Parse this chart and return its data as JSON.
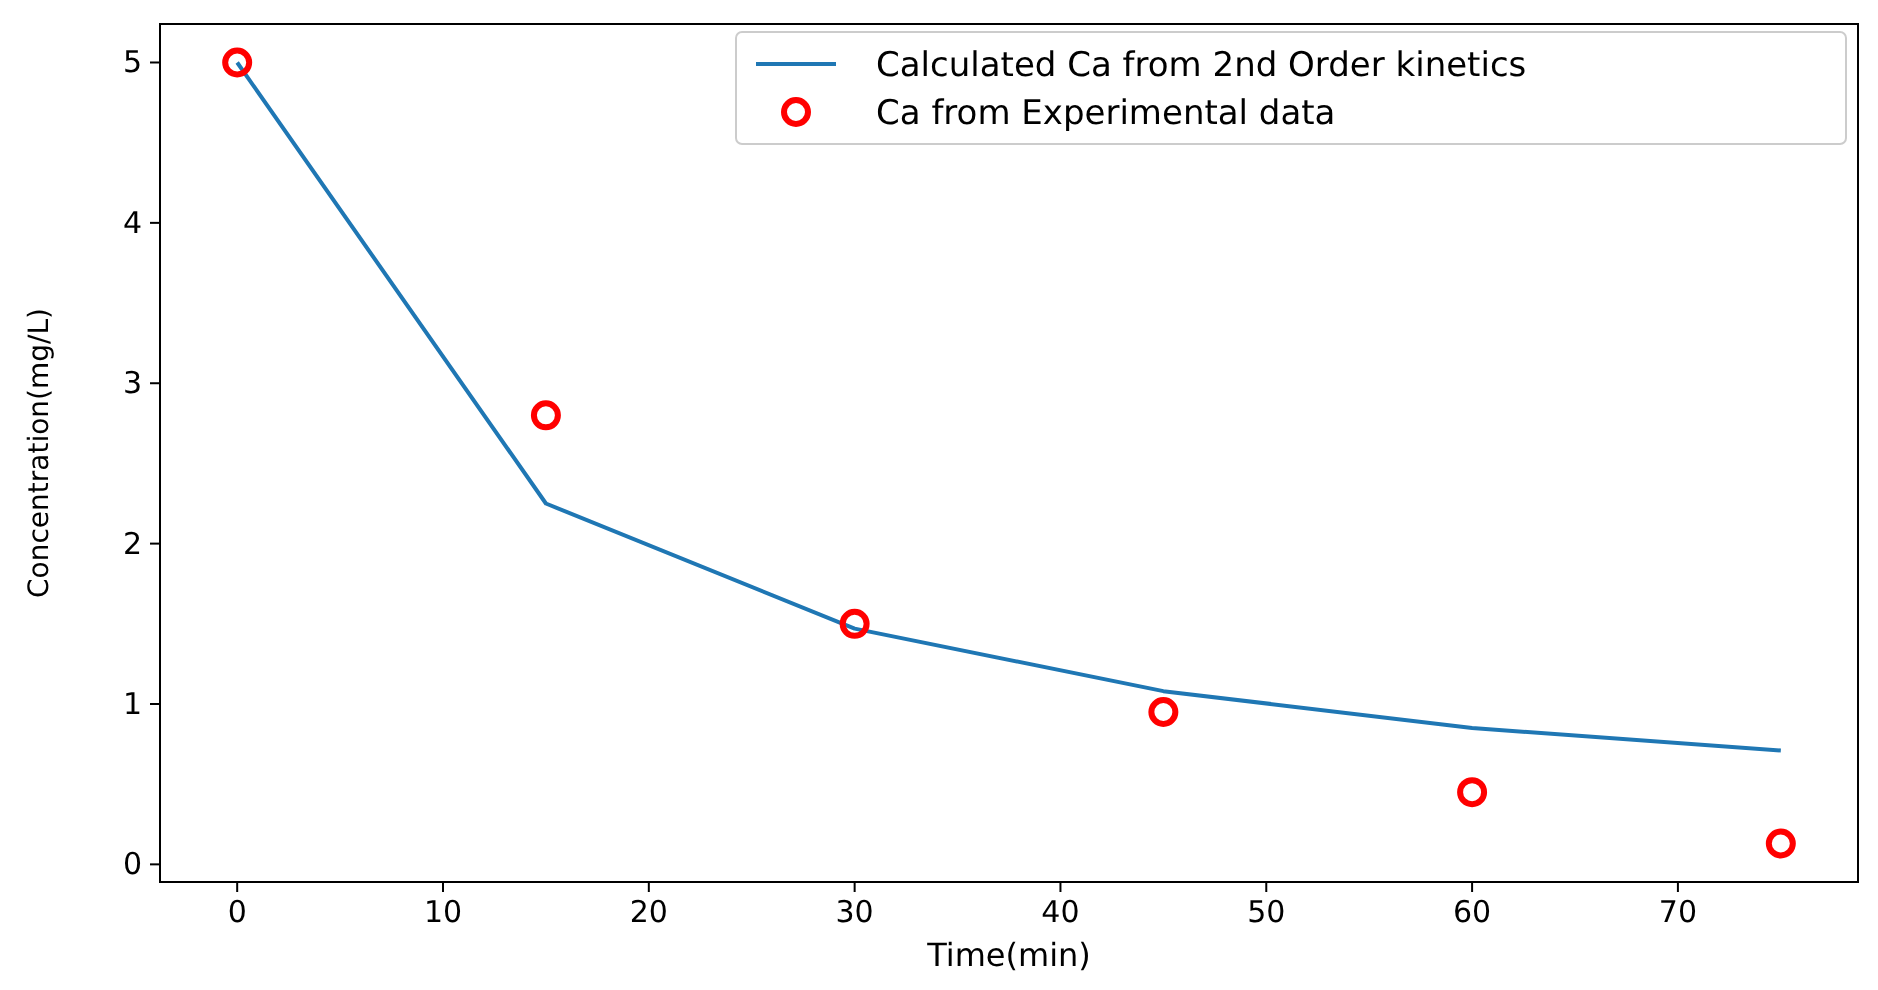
{
  "chart_data": {
    "type": "line",
    "xlabel": "Time(min)",
    "ylabel": "Concentration(mg/L)",
    "x": [
      0,
      15,
      30,
      45,
      60,
      75
    ],
    "series": [
      {
        "name": "Calculated Ca from 2nd Order kinetics",
        "color": "#1f77b4",
        "values": [
          5,
          2.25,
          1.47,
          1.08,
          0.85,
          0.71
        ]
      },
      {
        "name": "Ca from Experimental data",
        "color": "#ff0000",
        "type": "scatter",
        "marker": "circle",
        "values": [
          5,
          2.8,
          1.5,
          0.95,
          0.45,
          0.13
        ]
      }
    ],
    "xlim": [
      -3.75,
      78.75
    ],
    "ylim": [
      -0.11,
      5.24
    ],
    "xticks": [
      0,
      10,
      20,
      30,
      40,
      50,
      60,
      70
    ],
    "yticks": [
      0,
      1,
      2,
      3,
      4,
      5
    ],
    "legend": "top right"
  }
}
